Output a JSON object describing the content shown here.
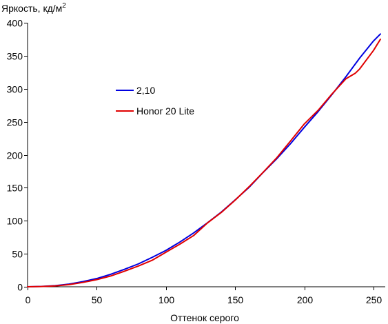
{
  "chart_data": {
    "type": "line",
    "ylabel": "Яркость, кд/м",
    "ylabel_superscript": "2",
    "xlabel": "Оттенок серого",
    "xlim": [
      0,
      255
    ],
    "ylim": [
      0,
      400
    ],
    "xticks": [
      0,
      50,
      100,
      150,
      200,
      250
    ],
    "yticks": [
      0,
      50,
      100,
      150,
      200,
      250,
      300,
      350,
      400
    ],
    "grid": false,
    "legend_position": "middle-left",
    "series": [
      {
        "name": "2,10",
        "color": "#0000e0",
        "x": [
          0,
          10,
          20,
          30,
          40,
          50,
          60,
          70,
          80,
          90,
          100,
          110,
          120,
          130,
          140,
          150,
          160,
          170,
          180,
          190,
          200,
          210,
          220,
          230,
          240,
          250,
          255
        ],
        "y": [
          0,
          0.5,
          1.7,
          4.1,
          7.8,
          12.5,
          18.9,
          26.4,
          34.6,
          44.5,
          55.1,
          67.7,
          81.5,
          96.9,
          113.2,
          131.6,
          150.5,
          172.7,
          193.8,
          216.7,
          241.6,
          265.5,
          291.3,
          318.0,
          346.5,
          372.4,
          383.0
        ]
      },
      {
        "name": "Honor 20 Lite",
        "color": "#e00000",
        "x": [
          0,
          10,
          20,
          30,
          40,
          50,
          60,
          70,
          80,
          90,
          100,
          110,
          120,
          130,
          140,
          150,
          160,
          170,
          180,
          190,
          200,
          210,
          220,
          230,
          237,
          240,
          250,
          255
        ],
        "y": [
          0,
          0.4,
          1.3,
          3.3,
          6.6,
          10.8,
          16.3,
          23.6,
          31.4,
          40.1,
          52.3,
          64.5,
          77.6,
          96.7,
          112.6,
          131.2,
          151.4,
          172.9,
          195.2,
          220.8,
          246.7,
          267.4,
          292.1,
          315.0,
          323.8,
          330.0,
          358.0,
          375.0
        ]
      }
    ]
  }
}
